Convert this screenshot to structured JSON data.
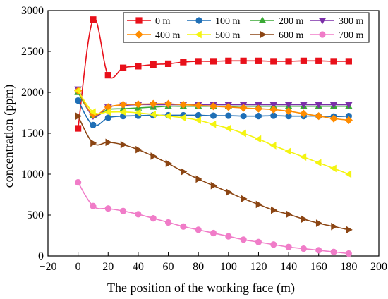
{
  "chart_data": {
    "type": "line",
    "xlabel": "The position of the working face (m)",
    "ylabel": "concentration (ppm)",
    "xlim": [
      -20,
      200
    ],
    "ylim": [
      0,
      3000
    ],
    "xticks": [
      -20,
      0,
      20,
      40,
      60,
      80,
      100,
      120,
      140,
      160,
      180,
      200
    ],
    "yticks": [
      0,
      500,
      1000,
      1500,
      2000,
      2500,
      3000
    ],
    "grid": false,
    "legend_position": "top-right",
    "x": [
      0,
      10,
      20,
      30,
      40,
      50,
      60,
      70,
      80,
      90,
      100,
      110,
      120,
      130,
      140,
      150,
      160,
      170,
      180
    ],
    "series": [
      {
        "name": "0 m",
        "color": "#e8101a",
        "marker": "square",
        "values": [
          1560,
          2890,
          2210,
          2300,
          2320,
          2340,
          2350,
          2370,
          2380,
          2380,
          2385,
          2385,
          2385,
          2380,
          2380,
          2385,
          2385,
          2380,
          2380
        ]
      },
      {
        "name": "100 m",
        "color": "#1f6fb6",
        "marker": "circle",
        "values": [
          1900,
          1600,
          1690,
          1710,
          1715,
          1720,
          1720,
          1720,
          1720,
          1715,
          1715,
          1710,
          1710,
          1715,
          1710,
          1710,
          1710,
          1705,
          1710
        ]
      },
      {
        "name": "200 m",
        "color": "#3aa935",
        "marker": "triangle-up",
        "values": [
          2000,
          1720,
          1790,
          1800,
          1810,
          1820,
          1830,
          1830,
          1830,
          1830,
          1830,
          1830,
          1830,
          1830,
          1830,
          1830,
          1830,
          1830,
          1830
        ]
      },
      {
        "name": "300 m",
        "color": "#7b2fa8",
        "marker": "triangle-down",
        "values": [
          2040,
          1710,
          1820,
          1840,
          1850,
          1850,
          1850,
          1850,
          1850,
          1850,
          1850,
          1850,
          1850,
          1850,
          1850,
          1850,
          1850,
          1850,
          1850
        ]
      },
      {
        "name": "400 m",
        "color": "#ff8c00",
        "marker": "diamond",
        "values": [
          2020,
          1730,
          1820,
          1850,
          1855,
          1860,
          1860,
          1850,
          1840,
          1830,
          1820,
          1810,
          1800,
          1790,
          1770,
          1740,
          1710,
          1680,
          1660
        ]
      },
      {
        "name": "500 m",
        "color": "#f4f411",
        "marker": "triangle-left",
        "values": [
          2020,
          1760,
          1760,
          1760,
          1750,
          1730,
          1710,
          1690,
          1660,
          1610,
          1560,
          1500,
          1430,
          1350,
          1280,
          1210,
          1140,
          1070,
          1000
        ]
      },
      {
        "name": "600 m",
        "color": "#8b4513",
        "marker": "triangle-right",
        "values": [
          1710,
          1380,
          1390,
          1360,
          1300,
          1220,
          1130,
          1030,
          940,
          860,
          780,
          700,
          630,
          560,
          510,
          450,
          400,
          360,
          320
        ]
      },
      {
        "name": "700 m",
        "color": "#f07cc8",
        "marker": "circle",
        "values": [
          900,
          610,
          580,
          550,
          510,
          460,
          410,
          360,
          320,
          280,
          240,
          200,
          170,
          140,
          110,
          90,
          70,
          50,
          30
        ]
      }
    ]
  }
}
